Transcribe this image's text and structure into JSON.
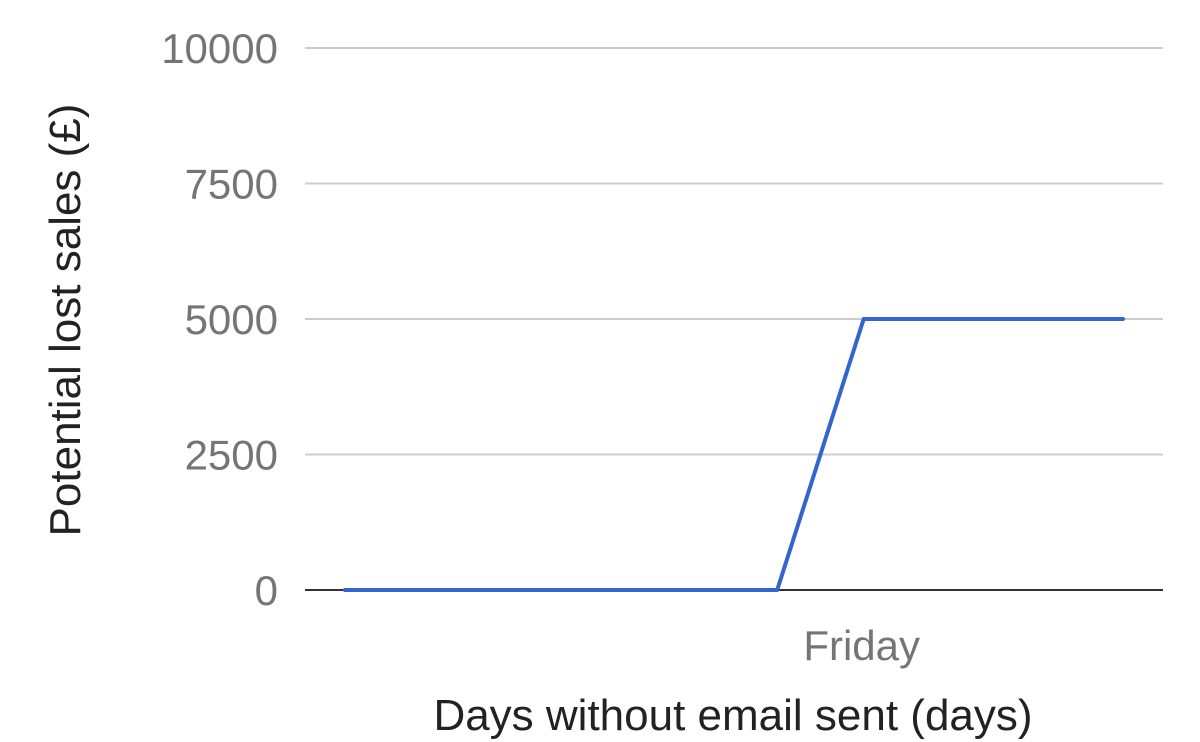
{
  "chart_data": {
    "type": "line",
    "title": "",
    "xlabel": "Days without email sent (days)",
    "ylabel": "Potential lost sales (£)",
    "ylim": [
      0,
      10000
    ],
    "yticks": [
      0,
      2500,
      5000,
      7500,
      10000
    ],
    "x_tick_labels": [
      {
        "label": "Friday",
        "x": 6
      }
    ],
    "xlim": [
      0,
      10
    ],
    "grid": true,
    "legend": "none",
    "series": [
      {
        "color": "#3366cc",
        "points": [
          {
            "x": 0,
            "y": 0
          },
          {
            "x": 5,
            "y": 0
          },
          {
            "x": 6,
            "y": 5000
          },
          {
            "x": 9,
            "y": 5000
          }
        ]
      }
    ]
  }
}
